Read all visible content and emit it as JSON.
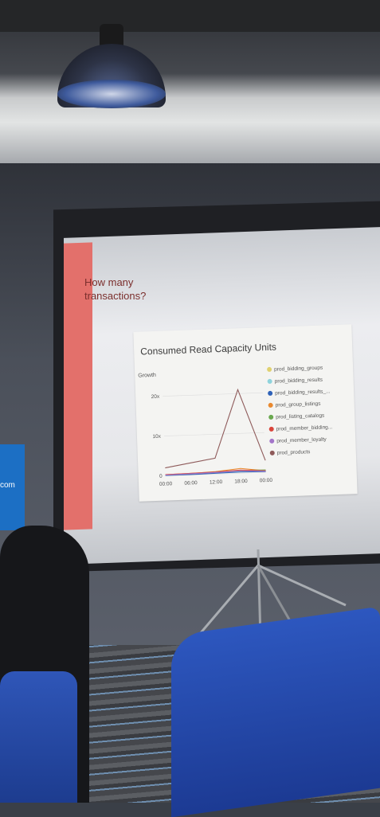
{
  "slide": {
    "title": "How many transactions?",
    "chart_title": "Consumed Read Capacity Units",
    "y_axis_label": "Growth"
  },
  "side_sign": {
    "text": "com"
  },
  "chart_data": {
    "type": "line",
    "title": "Consumed Read Capacity Units",
    "ylabel": "Growth",
    "xlabel": "",
    "x": [
      "00:00",
      "06:00",
      "12:00",
      "18:00",
      "00:00"
    ],
    "y_ticks": [
      "0",
      "10x",
      "20x"
    ],
    "ylim": [
      0,
      22
    ],
    "legend_position": "right",
    "series": [
      {
        "name": "prod_bidding_groups",
        "color": "#e0d170",
        "values": [
          0.2,
          0.2,
          0.3,
          0.4,
          0.3
        ]
      },
      {
        "name": "prod_bidding_results",
        "color": "#8fd3dc",
        "values": [
          0.2,
          0.3,
          0.3,
          0.5,
          0.3
        ]
      },
      {
        "name": "prod_bidding_results_...",
        "color": "#2f62b8",
        "values": [
          0.1,
          0.1,
          0.2,
          0.3,
          0.2
        ]
      },
      {
        "name": "prod_group_listings",
        "color": "#e9892f",
        "values": [
          0.3,
          0.4,
          0.6,
          1.2,
          0.4
        ]
      },
      {
        "name": "prod_listing_catalogs",
        "color": "#6aa84f",
        "values": [
          0.2,
          0.3,
          0.5,
          0.7,
          0.6
        ]
      },
      {
        "name": "prod_member_bidding...",
        "color": "#d9453b",
        "values": [
          0.3,
          0.4,
          0.5,
          0.8,
          0.4
        ]
      },
      {
        "name": "prod_member_loyalty",
        "color": "#a375c9",
        "values": [
          0.2,
          0.3,
          0.4,
          0.6,
          0.3
        ]
      },
      {
        "name": "prod_products",
        "color": "#8e5a5a",
        "values": [
          2,
          3,
          4,
          21,
          3
        ]
      }
    ]
  }
}
